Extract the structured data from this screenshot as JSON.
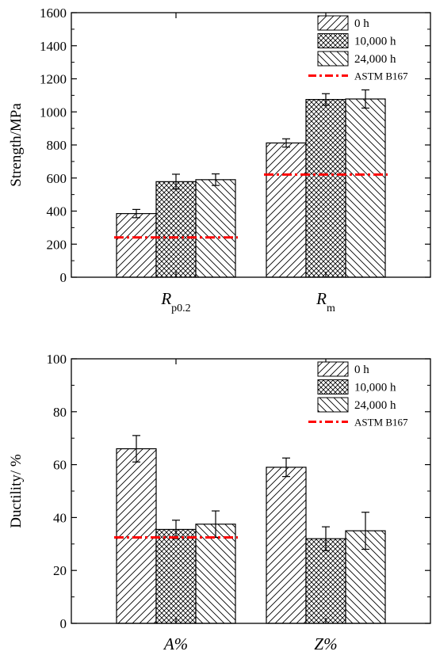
{
  "chart_data": [
    {
      "type": "bar",
      "ylabel": "Strength/MPa",
      "ylim": [
        0,
        1600
      ],
      "yticks": [
        0,
        200,
        400,
        600,
        800,
        1000,
        1200,
        1400,
        1600
      ],
      "categories": [
        {
          "main": "R",
          "sub": "p0.2"
        },
        {
          "main": "R",
          "sub": "m"
        }
      ],
      "series": [
        {
          "name": "0 h",
          "values": [
            385,
            812
          ],
          "errors": [
            25,
            25
          ]
        },
        {
          "name": "10,000 h",
          "values": [
            578,
            1075
          ],
          "errors": [
            45,
            35
          ]
        },
        {
          "name": "24,000 h",
          "values": [
            590,
            1078
          ],
          "errors": [
            35,
            55
          ]
        }
      ],
      "reference": {
        "name": "ASTM B167",
        "values": [
          241,
          621
        ],
        "color": "#ff0000"
      },
      "legend_position": "top-right",
      "grid": false
    },
    {
      "type": "bar",
      "ylabel": "Ductility/ %",
      "ylim": [
        0,
        100
      ],
      "yticks": [
        0,
        20,
        40,
        60,
        80,
        100
      ],
      "categories": [
        {
          "main": "A%",
          "sub": ""
        },
        {
          "main": "Z%",
          "sub": ""
        }
      ],
      "series": [
        {
          "name": "0 h",
          "values": [
            66,
            59
          ],
          "errors": [
            5,
            3.5
          ]
        },
        {
          "name": "10,000 h",
          "values": [
            35.5,
            32
          ],
          "errors": [
            3.5,
            4.5
          ]
        },
        {
          "name": "24,000 h",
          "values": [
            37.5,
            35
          ],
          "errors": [
            5,
            7
          ]
        }
      ],
      "reference": {
        "name": "ASTM B167",
        "values": [
          32.5,
          null
        ],
        "color": "#ff0000"
      },
      "legend_position": "top-right",
      "grid": false
    }
  ]
}
